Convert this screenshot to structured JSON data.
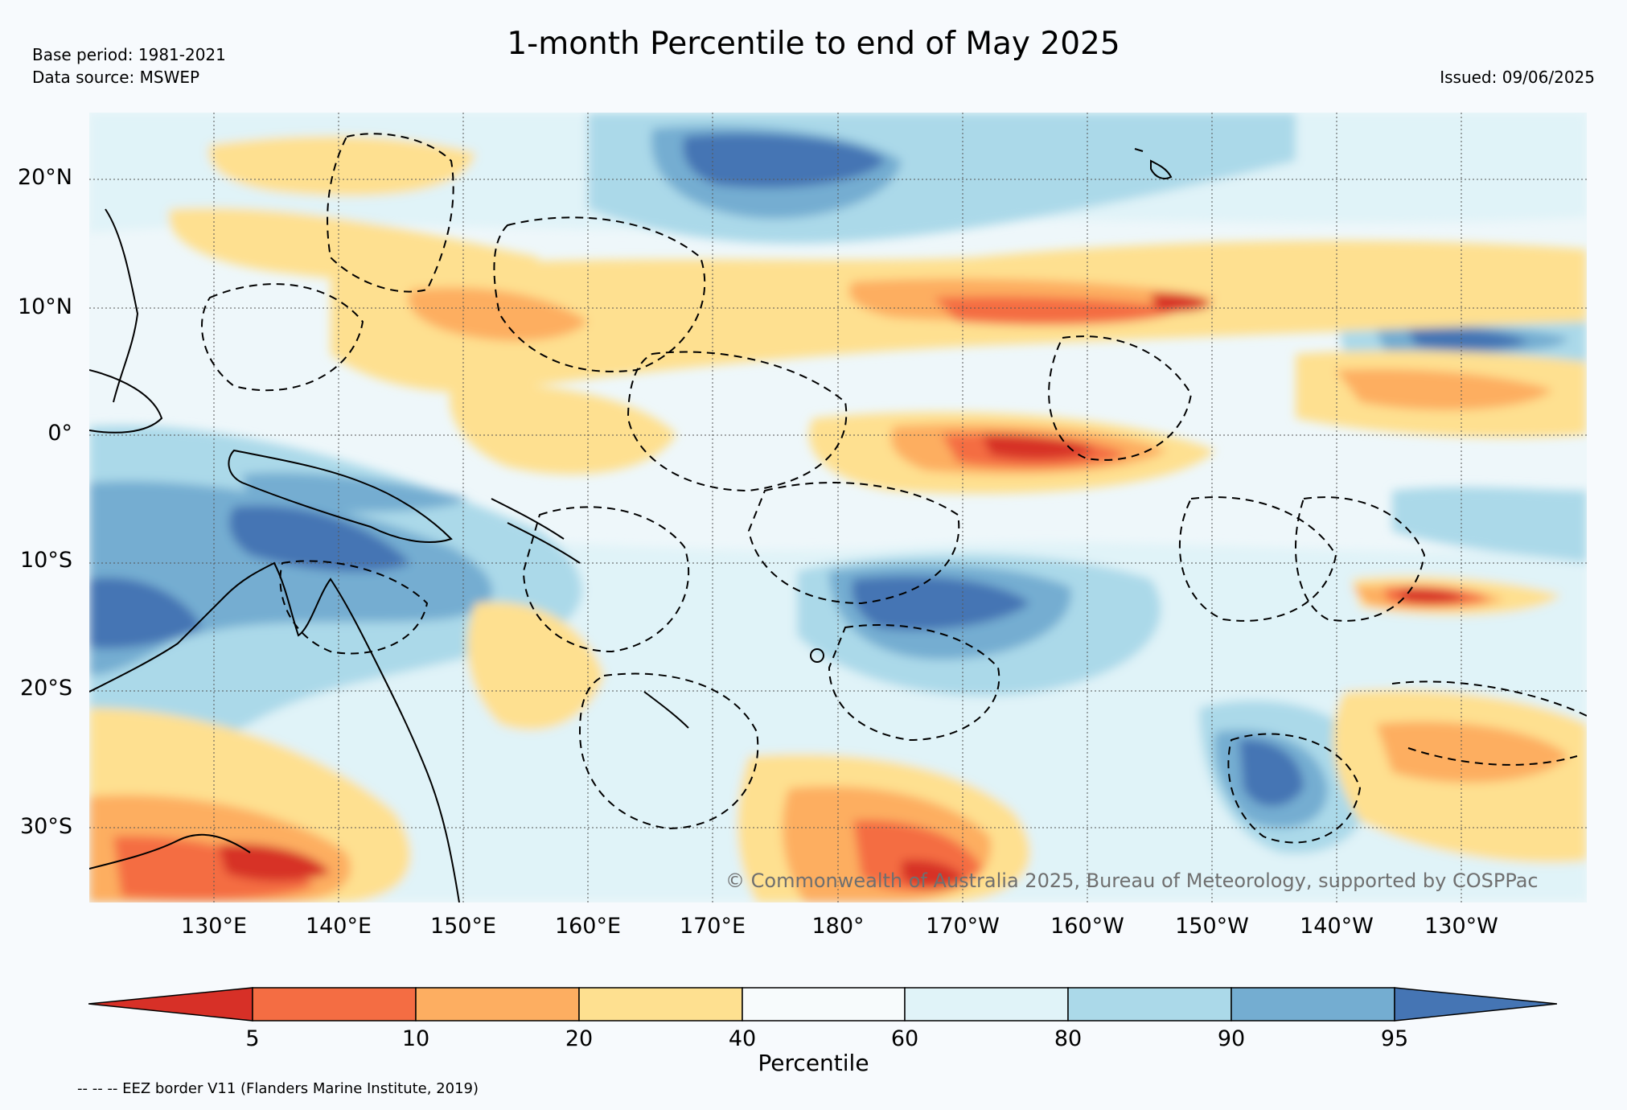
{
  "header": {
    "title": "1-month Percentile to end of May 2025",
    "base_period": "Base period: 1981-2021",
    "data_source": "Data source: MSWEP",
    "issued": "Issued: 09/06/2025"
  },
  "map": {
    "lat_labels": [
      "20°N",
      "10°N",
      "0°",
      "10°S",
      "20°S",
      "30°S"
    ],
    "lon_labels": [
      "130°E",
      "140°E",
      "150°E",
      "160°E",
      "170°E",
      "180°",
      "170°W",
      "160°W",
      "150°W",
      "140°W",
      "130°W"
    ],
    "copyright": "© Commonwealth of Australia 2025, Bureau of Meteorology, supported by COSPPac",
    "ocean_color": "#f7fbfc",
    "land_outline_color": "#000000"
  },
  "colorbar": {
    "title": "Percentile",
    "ticks": [
      "5",
      "10",
      "20",
      "40",
      "60",
      "80",
      "90",
      "95"
    ],
    "colors": [
      "#d73027",
      "#f46d43",
      "#fdae61",
      "#fee090",
      "#f7fbfc",
      "#e0f3f8",
      "#abd9e9",
      "#74add1",
      "#4575b4"
    ],
    "extend": "both"
  },
  "footer": {
    "eez_note": "-- -- -- EEZ border V11 (Flanders Marine Institute, 2019)"
  }
}
